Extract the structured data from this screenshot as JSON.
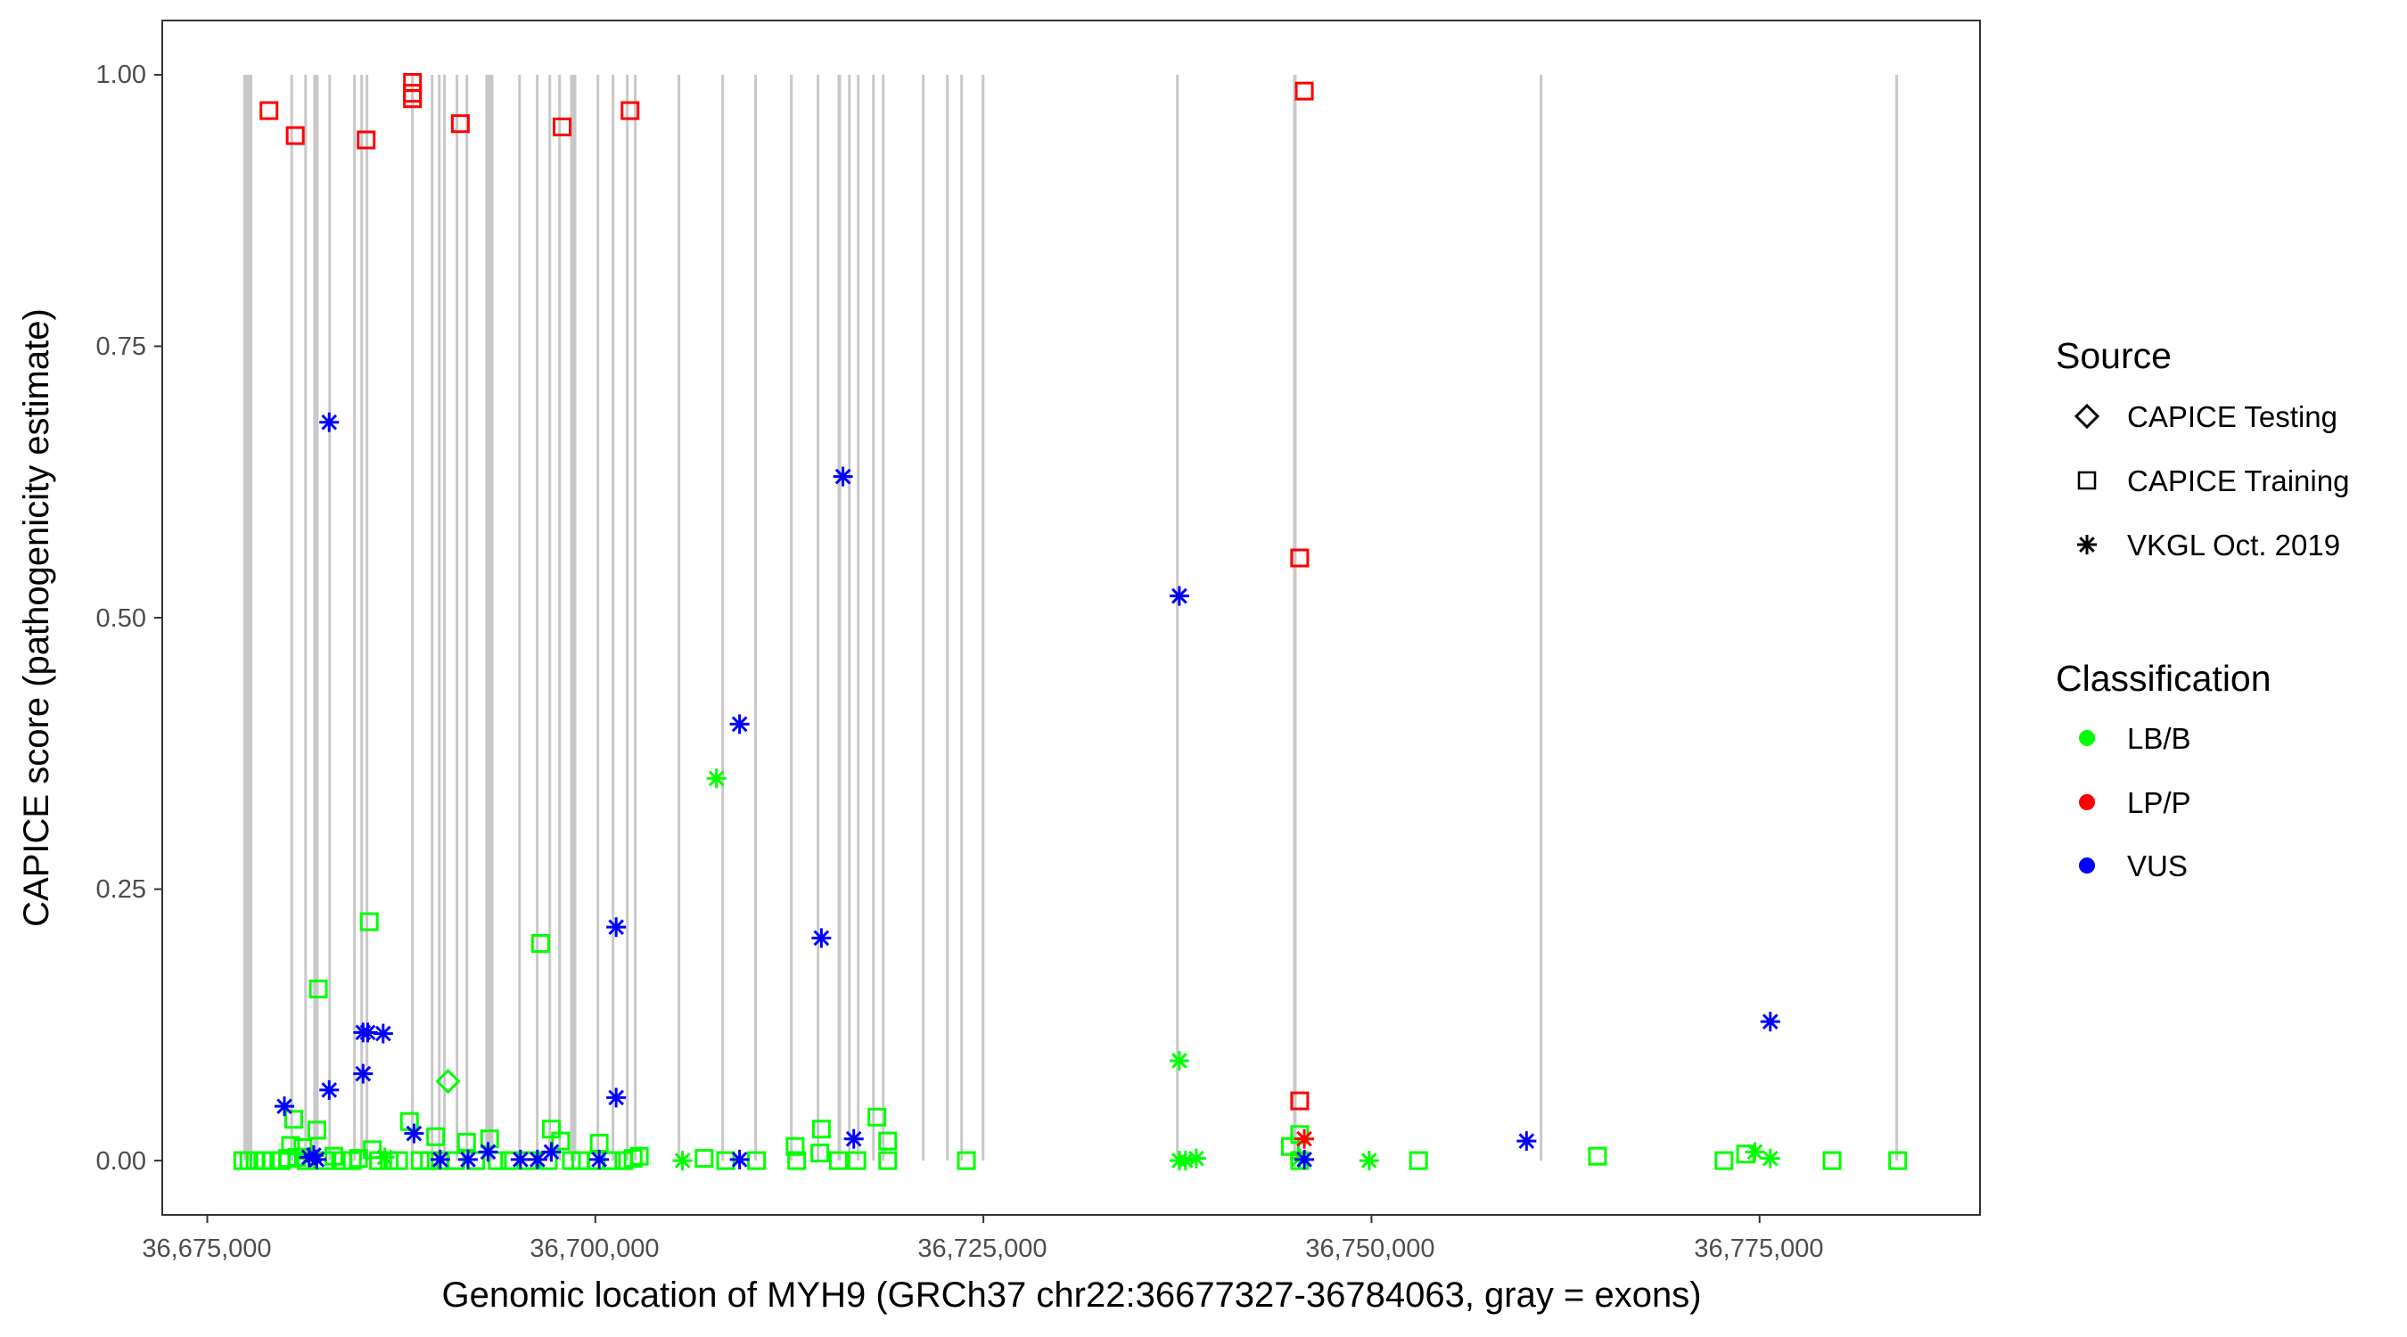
{
  "chart_data": {
    "type": "scatter",
    "xlabel": "Genomic location of MYH9 (GRCh37 chr22:36677327-36784063, gray = exons)",
    "ylabel": "CAPICE score (pathogenicity estimate)",
    "xlim": [
      36672100,
      36789200
    ],
    "ylim": [
      -0.05,
      1.05
    ],
    "x_ticks": [
      36675000,
      36700000,
      36725000,
      36750000,
      36775000
    ],
    "x_tick_labels": [
      "36,675,000",
      "36,700,000",
      "36,725,000",
      "36,750,000",
      "36,775,000"
    ],
    "y_ticks": [
      0,
      0.25,
      0.5,
      0.75,
      1.0
    ],
    "y_tick_labels": [
      "0.00",
      "0.25",
      "0.50",
      "0.75",
      "1.00"
    ],
    "grid": false,
    "legend_position": "right",
    "legend": {
      "source_title": "Source",
      "sources": [
        {
          "label": "CAPICE Testing",
          "shape": "diamond"
        },
        {
          "label": "CAPICE Training",
          "shape": "square"
        },
        {
          "label": "VKGL Oct. 2019",
          "shape": "asterisk"
        }
      ],
      "class_title": "Classification",
      "classes": [
        {
          "label": "LB/B",
          "color": "#00ff00"
        },
        {
          "label": "LP/P",
          "color": "#ff0000"
        },
        {
          "label": "VUS",
          "color": "#0000ff"
        }
      ]
    },
    "exon_color": "#c8c8c8",
    "exons": [
      [
        36677327,
        36677905
      ],
      [
        36680350,
        36680500
      ],
      [
        36681250,
        36681400
      ],
      [
        36681830,
        36681960
      ],
      [
        36682000,
        36682130
      ],
      [
        36682800,
        36682950
      ],
      [
        36684400,
        36684550
      ],
      [
        36684860,
        36685010
      ],
      [
        36685200,
        36685350
      ],
      [
        36688130,
        36688280
      ],
      [
        36689400,
        36689550
      ],
      [
        36689860,
        36690010
      ],
      [
        36690200,
        36690350
      ],
      [
        36691000,
        36691150
      ],
      [
        36691640,
        36691790
      ],
      [
        36692918,
        36693435
      ],
      [
        36695030,
        36695180
      ],
      [
        36696170,
        36696320
      ],
      [
        36696980,
        36697130
      ],
      [
        36697610,
        36697760
      ],
      [
        36698374,
        36698776
      ],
      [
        36700080,
        36700230
      ],
      [
        36701050,
        36701200
      ],
      [
        36701970,
        36702120
      ],
      [
        36702490,
        36702640
      ],
      [
        36705300,
        36705450
      ],
      [
        36708120,
        36708270
      ],
      [
        36710240,
        36710390
      ],
      [
        36712540,
        36712690
      ],
      [
        36714260,
        36714410
      ],
      [
        36715602,
        36715832
      ],
      [
        36716280,
        36716420
      ],
      [
        36716850,
        36716990
      ],
      [
        36717830,
        36717970
      ],
      [
        36718460,
        36718600
      ],
      [
        36721040,
        36721190
      ],
      [
        36722590,
        36722740
      ],
      [
        36723510,
        36723660
      ],
      [
        36724890,
        36725040
      ],
      [
        36737410,
        36737560
      ],
      [
        36744950,
        36745180
      ],
      [
        36760840,
        36760990
      ],
      [
        36783750,
        36783900
      ]
    ],
    "points_columns": [
      "position",
      "score",
      "source_index",
      "class_index"
    ],
    "points": [
      [
        36677286,
        0,
        1,
        0
      ],
      [
        36677684,
        0,
        1,
        0
      ],
      [
        36678081,
        0,
        1,
        0
      ],
      [
        36678578,
        0,
        1,
        0
      ],
      [
        36679175,
        0,
        1,
        0
      ],
      [
        36679771,
        0,
        1,
        0
      ],
      [
        36680169,
        0.002,
        1,
        0
      ],
      [
        36680368,
        0.014,
        1,
        0
      ],
      [
        36680566,
        0.038,
        1,
        0
      ],
      [
        36680765,
        0.003,
        1,
        0
      ],
      [
        36681163,
        0.012,
        1,
        0
      ],
      [
        36681362,
        0,
        1,
        0
      ],
      [
        36682157,
        0.158,
        1,
        0
      ],
      [
        36682057,
        0.028,
        1,
        0
      ],
      [
        36682554,
        0,
        1,
        0
      ],
      [
        36683151,
        0.004,
        1,
        0
      ],
      [
        36683747,
        0,
        1,
        0
      ],
      [
        36684344,
        0,
        1,
        0
      ],
      [
        36684741,
        0.002,
        1,
        0
      ],
      [
        36685437,
        0.22,
        1,
        0
      ],
      [
        36685636,
        0.01,
        1,
        0
      ],
      [
        36686033,
        0,
        1,
        0
      ],
      [
        36686729,
        0,
        1,
        0
      ],
      [
        36687326,
        0,
        1,
        0
      ],
      [
        36688021,
        0.036,
        1,
        0
      ],
      [
        36688717,
        0,
        1,
        0
      ],
      [
        36689314,
        0,
        1,
        0
      ],
      [
        36689711,
        0.022,
        1,
        0
      ],
      [
        36690009,
        0,
        1,
        0
      ],
      [
        36691003,
        0,
        1,
        0
      ],
      [
        36691699,
        0.017,
        1,
        0
      ],
      [
        36692296,
        0,
        1,
        0
      ],
      [
        36693190,
        0.02,
        1,
        0
      ],
      [
        36693687,
        0,
        1,
        0
      ],
      [
        36694482,
        0,
        1,
        0
      ],
      [
        36695675,
        0,
        1,
        0
      ],
      [
        36696470,
        0.2,
        1,
        0
      ],
      [
        36696967,
        0,
        1,
        0
      ],
      [
        36697166,
        0.029,
        1,
        0
      ],
      [
        36697763,
        0.018,
        1,
        0
      ],
      [
        36698458,
        0,
        1,
        0
      ],
      [
        36699055,
        0,
        1,
        0
      ],
      [
        36700049,
        0,
        1,
        0
      ],
      [
        36700248,
        0.016,
        1,
        0
      ],
      [
        36701043,
        0,
        1,
        0
      ],
      [
        36701838,
        0,
        1,
        0
      ],
      [
        36702434,
        0.002,
        1,
        0
      ],
      [
        36702832,
        0.004,
        1,
        0
      ],
      [
        36707007,
        0.002,
        1,
        0
      ],
      [
        36708398,
        0,
        1,
        0
      ],
      [
        36710386,
        0,
        1,
        0
      ],
      [
        36712871,
        0.013,
        1,
        0
      ],
      [
        36712971,
        0,
        1,
        0
      ],
      [
        36714462,
        0.007,
        1,
        0
      ],
      [
        36714561,
        0.029,
        1,
        0
      ],
      [
        36715655,
        0,
        1,
        0
      ],
      [
        36716847,
        0,
        1,
        0
      ],
      [
        36718140,
        0.04,
        1,
        0
      ],
      [
        36718835,
        0.018,
        1,
        0
      ],
      [
        36718835,
        0,
        1,
        0
      ],
      [
        36723905,
        0,
        1,
        0
      ],
      [
        36744779,
        0.013,
        1,
        0
      ],
      [
        36745375,
        0.024,
        1,
        0
      ],
      [
        36745375,
        0,
        1,
        0
      ],
      [
        36753029,
        0,
        1,
        0
      ],
      [
        36764559,
        0.004,
        1,
        0
      ],
      [
        36772710,
        0,
        1,
        0
      ],
      [
        36774102,
        0.006,
        1,
        0
      ],
      [
        36779668,
        0,
        1,
        0
      ],
      [
        36783900,
        0,
        1,
        0
      ],
      [
        36690506,
        0.073,
        0,
        0
      ],
      [
        36707802,
        0.352,
        2,
        0
      ],
      [
        36737622,
        0.092,
        2,
        0
      ],
      [
        36737622,
        0,
        2,
        0
      ],
      [
        36738020,
        0,
        2,
        0
      ],
      [
        36738715,
        0.002,
        2,
        0
      ],
      [
        36745375,
        0.002,
        2,
        0
      ],
      [
        36749848,
        0,
        2,
        0
      ],
      [
        36774698,
        0.008,
        2,
        0
      ],
      [
        36775692,
        0.002,
        2,
        0
      ],
      [
        36705615,
        0,
        2,
        0
      ],
      [
        36686431,
        0.003,
        2,
        0
      ],
      [
        36681560,
        0.002,
        2,
        0
      ],
      [
        36678976,
        0.967,
        1,
        1
      ],
      [
        36680666,
        0.944,
        1,
        1
      ],
      [
        36685238,
        0.94,
        1,
        1
      ],
      [
        36688220,
        0.993,
        1,
        1
      ],
      [
        36688220,
        0.983,
        1,
        1
      ],
      [
        36688220,
        0.978,
        1,
        1
      ],
      [
        36691302,
        0.955,
        1,
        1
      ],
      [
        36697862,
        0.952,
        1,
        1
      ],
      [
        36702236,
        0.967,
        1,
        1
      ],
      [
        36745673,
        0.985,
        1,
        1
      ],
      [
        36745375,
        0.555,
        1,
        1
      ],
      [
        36745375,
        0.055,
        1,
        1
      ],
      [
        36745673,
        0.02,
        2,
        1
      ],
      [
        36682853,
        0.68,
        2,
        2
      ],
      [
        36715953,
        0.63,
        2,
        2
      ],
      [
        36737622,
        0.52,
        2,
        2
      ],
      [
        36709293,
        0.402,
        2,
        2
      ],
      [
        36701341,
        0.215,
        2,
        2
      ],
      [
        36714561,
        0.205,
        2,
        2
      ],
      [
        36775692,
        0.128,
        2,
        2
      ],
      [
        36685039,
        0.118,
        2,
        2
      ],
      [
        36685338,
        0.118,
        2,
        2
      ],
      [
        36686332,
        0.117,
        2,
        2
      ],
      [
        36685039,
        0.08,
        2,
        2
      ],
      [
        36682853,
        0.065,
        2,
        2
      ],
      [
        36679970,
        0.05,
        2,
        2
      ],
      [
        36701341,
        0.058,
        2,
        2
      ],
      [
        36688320,
        0.025,
        2,
        2
      ],
      [
        36716649,
        0.02,
        2,
        2
      ],
      [
        36759987,
        0.018,
        2,
        2
      ],
      [
        36681560,
        0.003,
        2,
        2
      ],
      [
        36681859,
        0.005,
        2,
        2
      ],
      [
        36682057,
        0.001,
        2,
        2
      ],
      [
        36690009,
        0.001,
        2,
        2
      ],
      [
        36691799,
        0.001,
        2,
        2
      ],
      [
        36693091,
        0.008,
        2,
        2
      ],
      [
        36695178,
        0.001,
        2,
        2
      ],
      [
        36696272,
        0.001,
        2,
        2
      ],
      [
        36697166,
        0.008,
        2,
        2
      ],
      [
        36700248,
        0.001,
        2,
        2
      ],
      [
        36709293,
        0.001,
        2,
        2
      ],
      [
        36745673,
        0.001,
        2,
        2
      ]
    ]
  }
}
